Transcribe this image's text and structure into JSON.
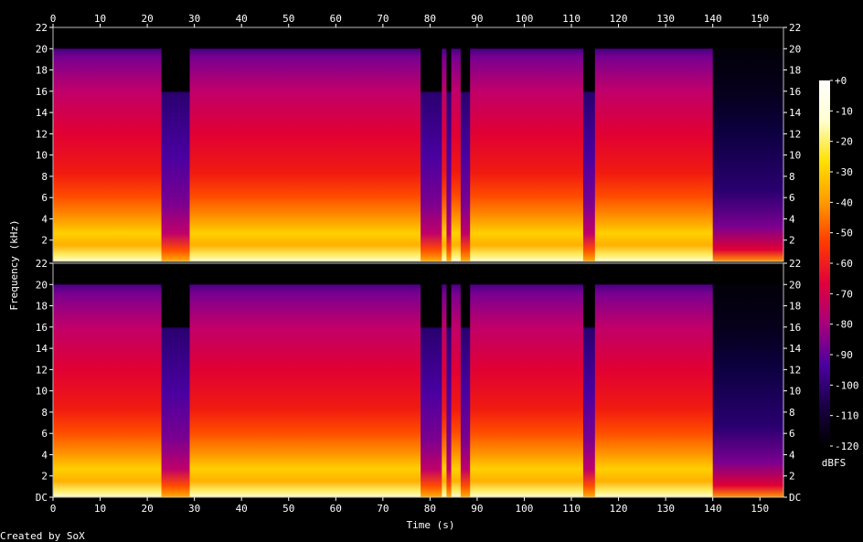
{
  "chart_data": {
    "type": "heatmap",
    "subtype": "spectrogram",
    "channels": 2,
    "xlabel": "Time (s)",
    "ylabel": "Frequency (kHz)",
    "xlim": [
      0,
      155
    ],
    "ylim_khz": [
      0,
      22
    ],
    "x_ticks": [
      0,
      10,
      20,
      30,
      40,
      50,
      60,
      70,
      80,
      90,
      100,
      110,
      120,
      130,
      140,
      150
    ],
    "y_ticks_top_channel": [
      "2",
      "4",
      "6",
      "8",
      "10",
      "12",
      "14",
      "16",
      "18",
      "20",
      "22"
    ],
    "y_ticks_bottom_channel": [
      "DC",
      "2",
      "4",
      "6",
      "8",
      "10",
      "12",
      "14",
      "16",
      "18",
      "20",
      "22"
    ],
    "colorbar": {
      "label": "dBFS",
      "range": [
        -120,
        0
      ],
      "ticks": [
        "+0",
        "-10",
        "-20",
        "-30",
        "-40",
        "-50",
        "-60",
        "-70",
        "-80",
        "-90",
        "-100",
        "-110",
        "-120"
      ]
    },
    "low_energy_gaps_s": [
      [
        23,
        29
      ],
      [
        78,
        82.5
      ],
      [
        83.5,
        84.5
      ],
      [
        86.5,
        88.5
      ],
      [
        112.5,
        115
      ]
    ],
    "outro_fade_start_s": 140,
    "bandwidth_cutoff_khz": 20,
    "credit": "Created by SoX"
  },
  "colors": {
    "background": "#000000",
    "axis": "#ffffff",
    "colormap": [
      "#000000",
      "#1a0046",
      "#4b00a0",
      "#a6007c",
      "#e0003c",
      "#ff3a00",
      "#ff9a00",
      "#ffe000",
      "#ffffd0",
      "#ffffff"
    ]
  }
}
